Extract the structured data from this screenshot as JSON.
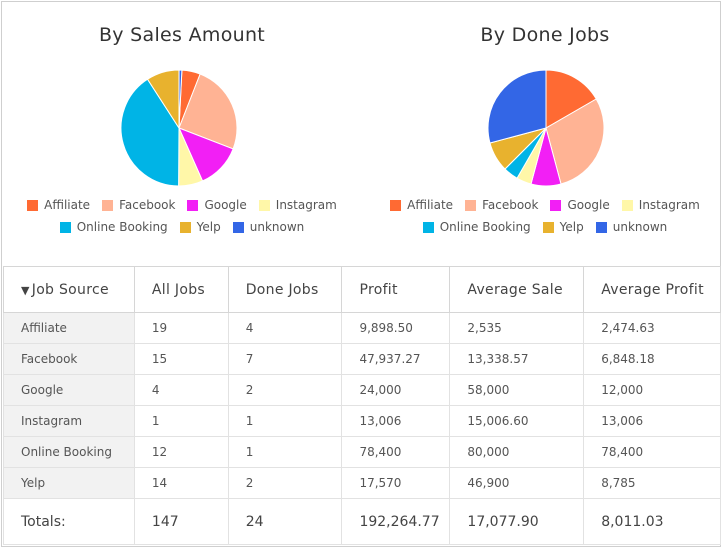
{
  "charts": [
    {
      "title": "By Sales Amount",
      "slices": [
        {
          "label": "Affiliate",
          "value": 9898.5,
          "color": "#ff6a33"
        },
        {
          "label": "Facebook",
          "value": 47937.27,
          "color": "#ffb394"
        },
        {
          "label": "Google",
          "value": 24000,
          "color": "#f21ff5"
        },
        {
          "label": "Instagram",
          "value": 13006,
          "color": "#fff7a8"
        },
        {
          "label": "Online Booking",
          "value": 78400,
          "color": "#00b4e6"
        },
        {
          "label": "Yelp",
          "value": 17570,
          "color": "#e8b22e"
        },
        {
          "label": "unknown",
          "value": 1500,
          "color": "#3366e6"
        }
      ]
    },
    {
      "title": "By Done Jobs",
      "slices": [
        {
          "label": "Affiliate",
          "value": 4,
          "color": "#ff6a33"
        },
        {
          "label": "Facebook",
          "value": 7,
          "color": "#ffb394"
        },
        {
          "label": "Google",
          "value": 2,
          "color": "#f21ff5"
        },
        {
          "label": "Instagram",
          "value": 1,
          "color": "#fff7a8"
        },
        {
          "label": "Online Booking",
          "value": 1,
          "color": "#00b4e6"
        },
        {
          "label": "Yelp",
          "value": 2,
          "color": "#e8b22e"
        },
        {
          "label": "unknown",
          "value": 7,
          "color": "#3366e6"
        }
      ]
    }
  ],
  "legend": [
    "Affiliate",
    "Facebook",
    "Google",
    "Instagram",
    "Online Booking",
    "Yelp",
    "unknown"
  ],
  "table": {
    "sort_arrow": "▼",
    "headers": [
      "Job Source",
      "All Jobs",
      "Done Jobs",
      "Profit",
      "Average Sale",
      "Average Profit"
    ],
    "rows": [
      [
        "Affiliate",
        "19",
        "4",
        "9,898.50",
        "2,535",
        "2,474.63"
      ],
      [
        "Facebook",
        "15",
        "7",
        "47,937.27",
        "13,338.57",
        "6,848.18"
      ],
      [
        "Google",
        "4",
        "2",
        "24,000",
        "58,000",
        "12,000"
      ],
      [
        "Instagram",
        "1",
        "1",
        "13,006",
        "15,006.60",
        "13,006"
      ],
      [
        "Online Booking",
        "12",
        "1",
        "78,400",
        "80,000",
        "78,400"
      ],
      [
        "Yelp",
        "14",
        "2",
        "17,570",
        "46,900",
        "8,785"
      ]
    ],
    "totals": [
      "Totals:",
      "147",
      "24",
      "192,264.77",
      "17,077.90",
      "8,011.03"
    ]
  }
}
